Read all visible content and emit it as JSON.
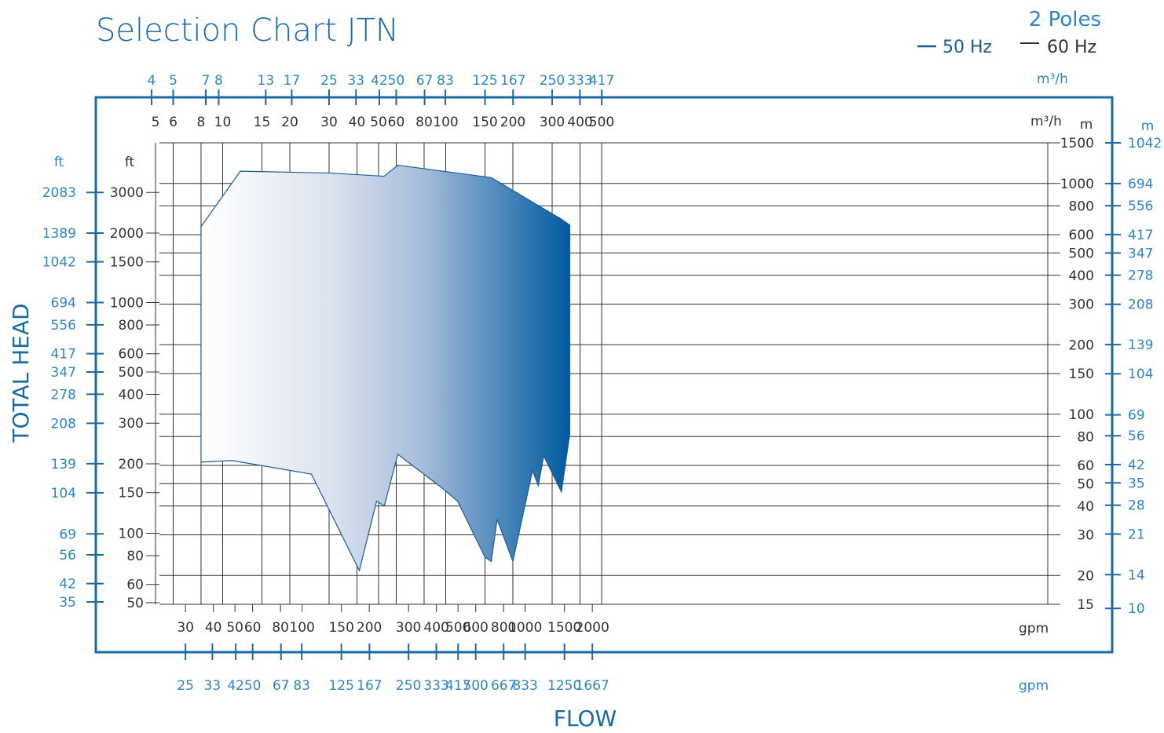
{
  "chart_data": {
    "type": "area",
    "title": "Selection Chart JTN",
    "legend": {
      "title": "2 Poles",
      "placement": "top-right",
      "entries": [
        {
          "label": "50 Hz",
          "color": "#1a5c96"
        },
        {
          "label": "60 Hz",
          "color": "#333333"
        }
      ]
    },
    "x_axis_title": "FLOW",
    "y_axis_title": "TOTAL HEAD",
    "scale": "log-log",
    "grid": true,
    "axes": {
      "top_blue": {
        "unit": "m³/h",
        "ticks": [
          "4",
          "5",
          "7",
          "8",
          "13",
          "17",
          "25",
          "33",
          "42",
          "50",
          "67",
          "83",
          "125",
          "167",
          "250",
          "333",
          "417"
        ]
      },
      "top_dark": {
        "unit": "m³/h",
        "ticks": [
          "5",
          "6",
          "8",
          "10",
          "15",
          "20",
          "30",
          "40",
          "50",
          "60",
          "80",
          "100",
          "150",
          "200",
          "300",
          "400",
          "500"
        ]
      },
      "bottom_dark": {
        "unit": "gpm",
        "ticks": [
          "30",
          "40",
          "50",
          "60",
          "80",
          "100",
          "150",
          "200",
          "300",
          "400",
          "500",
          "600",
          "800",
          "1000",
          "1500",
          "2000"
        ]
      },
      "bottom_blue": {
        "unit": "gpm",
        "ticks": [
          "25",
          "33",
          "42",
          "50",
          "67",
          "83",
          "125",
          "167",
          "250",
          "333",
          "417",
          "500",
          "667",
          "833",
          "1250",
          "1667"
        ]
      },
      "left_blue": {
        "unit": "ft",
        "ticks": [
          "2083",
          "1389",
          "1042",
          "694",
          "556",
          "417",
          "347",
          "278",
          "208",
          "139",
          "104",
          "69",
          "56",
          "42",
          "35"
        ]
      },
      "left_dark": {
        "unit": "ft",
        "ticks": [
          "3000",
          "2000",
          "1500",
          "1000",
          "800",
          "600",
          "500",
          "400",
          "300",
          "200",
          "150",
          "100",
          "80",
          "60",
          "50"
        ]
      },
      "right_dark": {
        "unit": "m",
        "ticks": [
          "1500",
          "1000",
          "800",
          "600",
          "500",
          "400",
          "300",
          "200",
          "150",
          "100",
          "80",
          "60",
          "50",
          "40",
          "30",
          "20",
          "15"
        ]
      },
      "right_blue": {
        "unit": "m",
        "ticks": [
          "1042",
          "694",
          "556",
          "417",
          "347",
          "278",
          "208",
          "139",
          "104",
          "69",
          "56",
          "42",
          "35",
          "28",
          "21",
          "14",
          "10"
        ]
      }
    },
    "x_range_m3h": [
      4,
      600
    ],
    "y_range_m": [
      15,
      1500
    ],
    "series": [
      {
        "fill": "gradient white-to-blue",
        "upper_boundary_m3h_m": [
          [
            8,
            650
          ],
          [
            12,
            1130
          ],
          [
            30,
            1110
          ],
          [
            53,
            1075
          ],
          [
            61,
            1200
          ],
          [
            160,
            1060
          ],
          [
            330,
            700
          ],
          [
            360,
            660
          ]
        ],
        "lower_boundary_m3h_m": [
          [
            8,
            62
          ],
          [
            11,
            63
          ],
          [
            25,
            55
          ],
          [
            41,
            21
          ],
          [
            49,
            42
          ],
          [
            53,
            40
          ],
          [
            61,
            67
          ],
          [
            96,
            48
          ],
          [
            113,
            42
          ],
          [
            150,
            24
          ],
          [
            160,
            23
          ],
          [
            170,
            35
          ],
          [
            200,
            23
          ],
          [
            245,
            57
          ],
          [
            260,
            49
          ],
          [
            275,
            66
          ],
          [
            330,
            46
          ],
          [
            360,
            82
          ]
        ]
      }
    ]
  }
}
